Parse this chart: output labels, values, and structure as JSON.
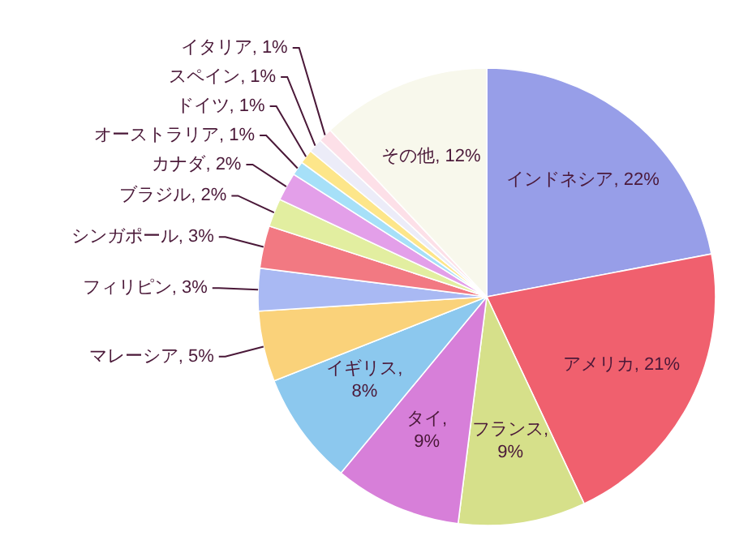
{
  "chart_data": {
    "type": "pie",
    "categories": [
      "インドネシア",
      "アメリカ",
      "フランス",
      "タイ",
      "イギリス",
      "マレーシア",
      "フィリピン",
      "シンガポール",
      "ブラジル",
      "カナダ",
      "オーストラリア",
      "ドイツ",
      "スペイン",
      "イタリア",
      "その他"
    ],
    "values": [
      22,
      21,
      9,
      9,
      8,
      5,
      3,
      3,
      2,
      2,
      1,
      1,
      1,
      1,
      12
    ],
    "colors": [
      "#979ee8",
      "#f0606e",
      "#d6e08a",
      "#d77fd9",
      "#8cc8ee",
      "#fad27a",
      "#a9b9f3",
      "#f27982",
      "#e2eea0",
      "#e39fe9",
      "#a6e0f8",
      "#fde68a",
      "#ececf8",
      "#fde0e8",
      "#f8f8ec"
    ],
    "value_labels": [
      ", 22%",
      ", 21%",
      ", 9%",
      ", 9%",
      ", 8%",
      ", 5%",
      ", 3%",
      ", 3%",
      ", 2%",
      ", 2%",
      ", 1%",
      ", 1%",
      ", 1%",
      ", 1%",
      ", 12%"
    ]
  }
}
